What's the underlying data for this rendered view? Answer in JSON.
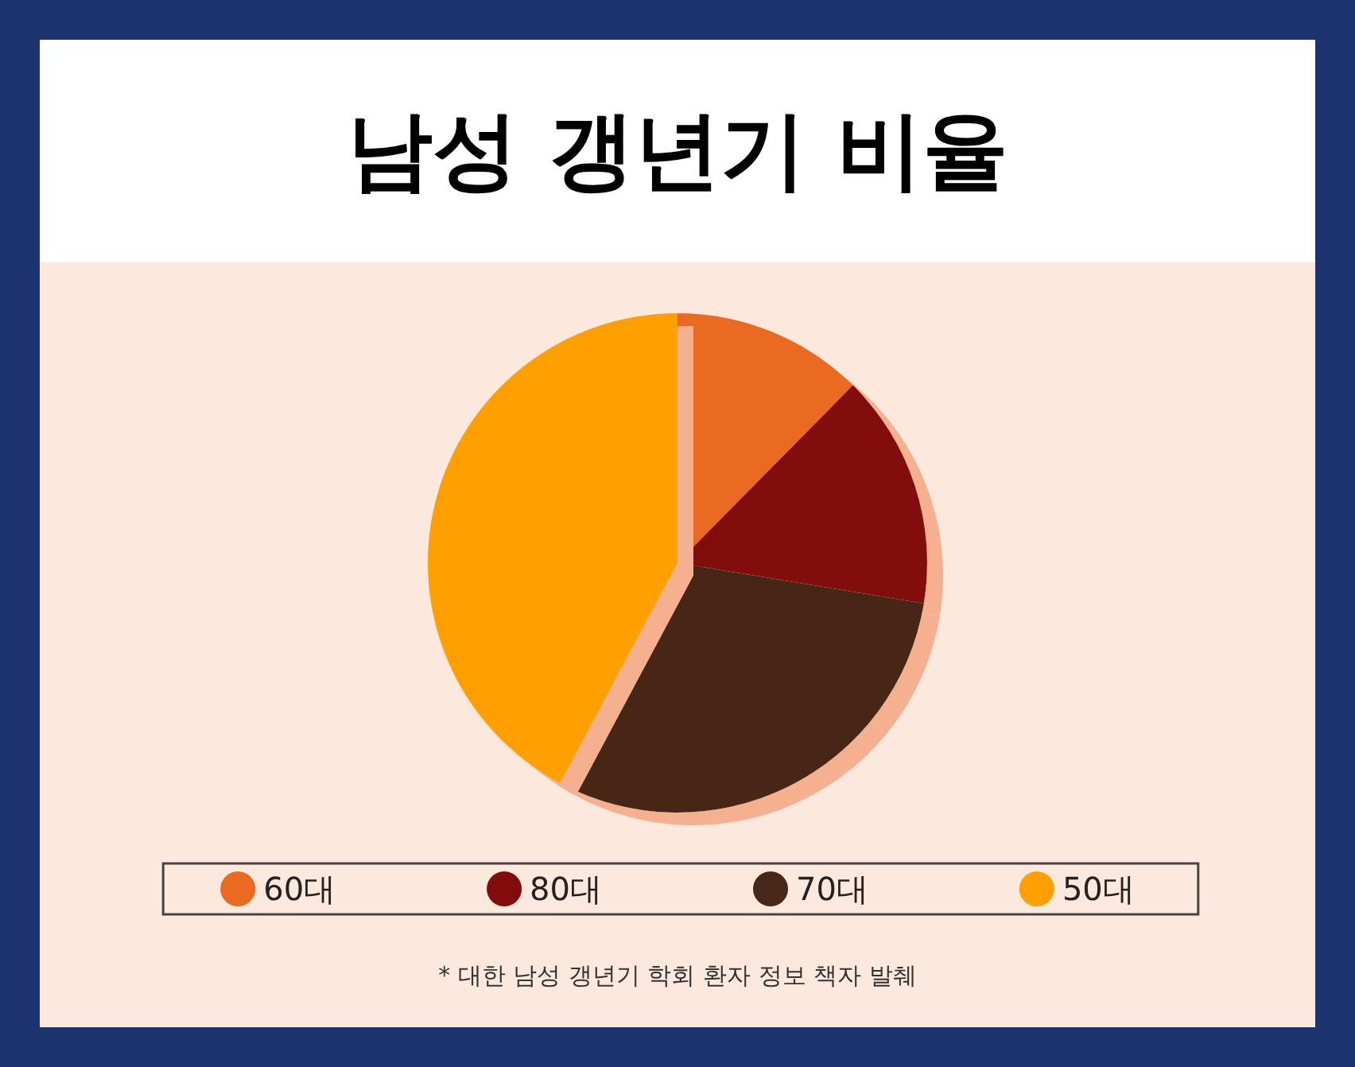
{
  "chart_data": {
    "type": "pie",
    "title": "남성 갱년기 비율",
    "categories": [
      "60대",
      "80대",
      "70대",
      "50대"
    ],
    "values": [
      12.4,
      15.2,
      30.2,
      42.2
    ],
    "colors": [
      "#eb6a22",
      "#820c0c",
      "#472718",
      "#ffa000"
    ],
    "legend": "bottom",
    "annotations": [
      "* 대한 남성 갱년기 학회 환자 정보 책자 발췌"
    ]
  }
}
